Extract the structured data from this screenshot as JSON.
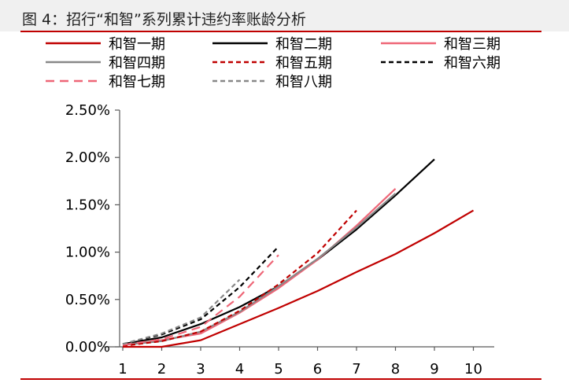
{
  "figure_title": "图 4：招行“和智”系列累计违约率账龄分析",
  "chart_data": {
    "type": "line",
    "title": "",
    "xlabel": "",
    "ylabel": "",
    "x_ticks": [
      "1",
      "2",
      "3",
      "4",
      "5",
      "6",
      "7",
      "8",
      "9",
      "10"
    ],
    "y_ticks": [
      "0.00%",
      "0.50%",
      "1.00%",
      "1.50%",
      "2.00%",
      "2.50%"
    ],
    "xlim": [
      1,
      10
    ],
    "ylim": [
      0,
      2.5
    ],
    "grid": false,
    "legend_position": "top",
    "series": [
      {
        "name": "和智一期",
        "color": "#c00000",
        "dash": "solid",
        "x": [
          1,
          2,
          3,
          4,
          5,
          6,
          7,
          8,
          9,
          10
        ],
        "values": [
          0.0,
          0.0,
          0.07,
          0.24,
          0.41,
          0.59,
          0.79,
          0.98,
          1.2,
          1.44
        ]
      },
      {
        "name": "和智二期",
        "color": "#000000",
        "dash": "solid",
        "x": [
          1,
          2,
          3,
          4,
          5,
          6,
          7,
          8,
          9
        ],
        "values": [
          0.03,
          0.1,
          0.24,
          0.42,
          0.64,
          0.92,
          1.24,
          1.6,
          1.98
        ]
      },
      {
        "name": "和智三期",
        "color": "#ee6677",
        "dash": "solid",
        "x": [
          1,
          2,
          3,
          4,
          5,
          6,
          7,
          8
        ],
        "values": [
          0.02,
          0.07,
          0.14,
          0.36,
          0.62,
          0.92,
          1.28,
          1.67
        ]
      },
      {
        "name": "和智四期",
        "color": "#888888",
        "dash": "solid",
        "x": [
          1,
          2,
          3,
          4,
          5,
          6,
          7,
          8
        ],
        "values": [
          0.02,
          0.06,
          0.16,
          0.37,
          0.64,
          0.93,
          1.26,
          1.62
        ]
      },
      {
        "name": "和智五期",
        "color": "#c00000",
        "dash": "short",
        "x": [
          1,
          2,
          3,
          4,
          5,
          6,
          7
        ],
        "values": [
          0.01,
          0.06,
          0.16,
          0.38,
          0.66,
          0.99,
          1.44
        ]
      },
      {
        "name": "和智六期",
        "color": "#000000",
        "dash": "short",
        "x": [
          1,
          2,
          3,
          4,
          5
        ],
        "values": [
          0.03,
          0.13,
          0.29,
          0.63,
          1.06
        ]
      },
      {
        "name": "和智七期",
        "color": "#ee6677",
        "dash": "long",
        "x": [
          1,
          2,
          3,
          4,
          5
        ],
        "values": [
          0.02,
          0.08,
          0.21,
          0.53,
          0.97
        ]
      },
      {
        "name": "和智八期",
        "color": "#888888",
        "dash": "short",
        "x": [
          1,
          2,
          3,
          4
        ],
        "values": [
          0.03,
          0.14,
          0.31,
          0.71
        ]
      }
    ]
  }
}
